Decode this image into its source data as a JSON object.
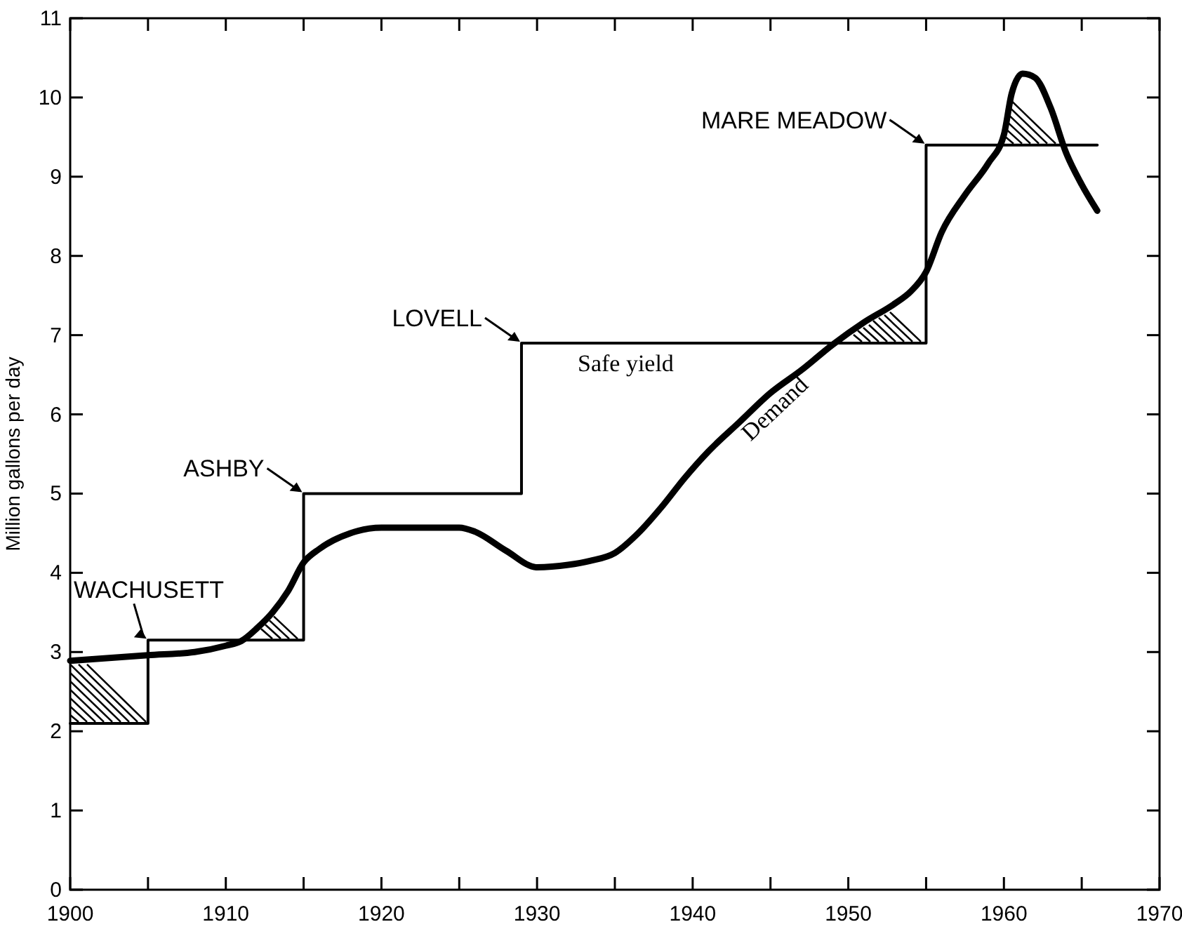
{
  "chart_data": {
    "type": "line",
    "ylabel": "Million gallons per day",
    "xlim": [
      1900,
      1970
    ],
    "xticks": [
      1900,
      {
        "value": 1905,
        "label": null
      },
      1910,
      {
        "value": 1915,
        "label": null
      },
      1920,
      {
        "value": 1925,
        "label": null
      },
      1930,
      {
        "value": 1935,
        "label": null
      },
      1940,
      {
        "value": 1945,
        "label": null
      },
      1950,
      {
        "value": 1955,
        "label": null
      },
      1960,
      {
        "value": 1965,
        "label": null
      },
      1970
    ],
    "ylim": [
      0,
      11
    ],
    "yticks": [
      0,
      1,
      2,
      3,
      4,
      5,
      6,
      7,
      8,
      9,
      10,
      11
    ],
    "grid": false,
    "legend": false,
    "series": [
      {
        "name": "Safe yield",
        "type": "step",
        "color": "#000000",
        "x": [
          1900,
          1905,
          1915,
          1929,
          1955,
          1966
        ],
        "values": [
          2.1,
          3.15,
          5,
          6.9,
          9.4,
          9.4
        ]
      },
      {
        "name": "Demand",
        "type": "line",
        "color": "#000000",
        "x": [
          1900,
          1905,
          1908,
          1910,
          1911,
          1912,
          1913,
          1914,
          1915,
          1916,
          1918,
          1920,
          1925,
          1926,
          1928,
          1930,
          1932,
          1933.4,
          1935,
          1936.5,
          1938,
          1939.5,
          1941,
          1943,
          1945,
          1947,
          1949,
          1951,
          1953,
          1954,
          1955,
          1956,
          1957.5,
          1959,
          1960,
          1960.5,
          1961.2,
          1962,
          1963,
          1964,
          1965,
          1966
        ],
        "values": [
          2.89,
          2.96,
          3.0,
          3.08,
          3.14,
          3.3,
          3.5,
          3.77,
          4.13,
          4.3,
          4.5,
          4.57,
          4.57,
          4.52,
          4.28,
          4.07,
          4.1,
          4.15,
          4.25,
          4.5,
          4.83,
          5.2,
          5.53,
          5.9,
          6.27,
          6.56,
          6.88,
          7.16,
          7.4,
          7.55,
          7.8,
          8.3,
          8.77,
          9.17,
          9.53,
          10.05,
          10.3,
          10.25,
          9.87,
          9.3,
          8.9,
          8.57
        ]
      }
    ],
    "annotations": [
      {
        "text": "WACHUSETT",
        "x": 1905,
        "y": 3.15
      },
      {
        "text": "ASHBY",
        "x": 1915,
        "y": 5
      },
      {
        "text": "LOVELL",
        "x": 1929,
        "y": 6.9
      },
      {
        "text": "MARE MEADOW",
        "x": 1955,
        "y": 9.4
      }
    ]
  }
}
